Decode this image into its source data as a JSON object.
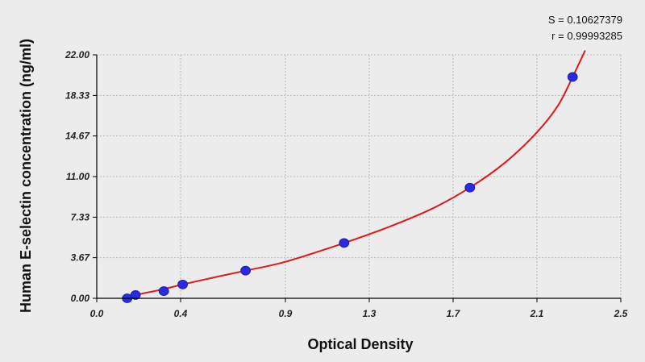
{
  "chart_data": {
    "type": "scatter",
    "title": "",
    "xlabel": "Optical Density",
    "ylabel": "Human E-selectin concentration (ng/ml)",
    "xlim": [
      0.0,
      2.5
    ],
    "ylim": [
      0.0,
      22.0
    ],
    "x_ticks": [
      0.0,
      0.4,
      0.9,
      1.3,
      1.7,
      2.1,
      2.5
    ],
    "x_tick_labels": [
      "0.0",
      "0.4",
      "0.9",
      "1.3",
      "1.7",
      "2.1",
      "2.5"
    ],
    "y_ticks": [
      0.0,
      3.67,
      7.33,
      11.0,
      14.67,
      18.33,
      22.0
    ],
    "y_tick_labels": [
      "0.00",
      "3.67",
      "7.33",
      "11.00",
      "14.67",
      "18.33",
      "22.00"
    ],
    "grid": true,
    "points": [
      {
        "x": 0.145,
        "y": 0.0
      },
      {
        "x": 0.185,
        "y": 0.3
      },
      {
        "x": 0.32,
        "y": 0.65
      },
      {
        "x": 0.41,
        "y": 1.25
      },
      {
        "x": 0.71,
        "y": 2.5
      },
      {
        "x": 1.18,
        "y": 5.0
      },
      {
        "x": 1.78,
        "y": 10.0
      },
      {
        "x": 2.27,
        "y": 20.0
      }
    ],
    "fit_curve": {
      "x": [
        0.13,
        0.2,
        0.3,
        0.41,
        0.55,
        0.71,
        0.9,
        1.18,
        1.4,
        1.6,
        1.78,
        1.95,
        2.1,
        2.2,
        2.27,
        2.33
      ],
      "y": [
        -0.1,
        0.35,
        0.75,
        1.25,
        1.85,
        2.5,
        3.3,
        5.0,
        6.5,
        8.1,
        10.0,
        12.3,
        15.0,
        17.4,
        20.0,
        22.4
      ]
    },
    "stats": {
      "s_text": "S = 0.10627379",
      "r_text": "r = 0.99993285"
    },
    "colors": {
      "point": "#2a2ae0",
      "curve": "#e01818",
      "grid": "#b8b8b8",
      "axis": "#000000",
      "background": "#ececec"
    }
  }
}
